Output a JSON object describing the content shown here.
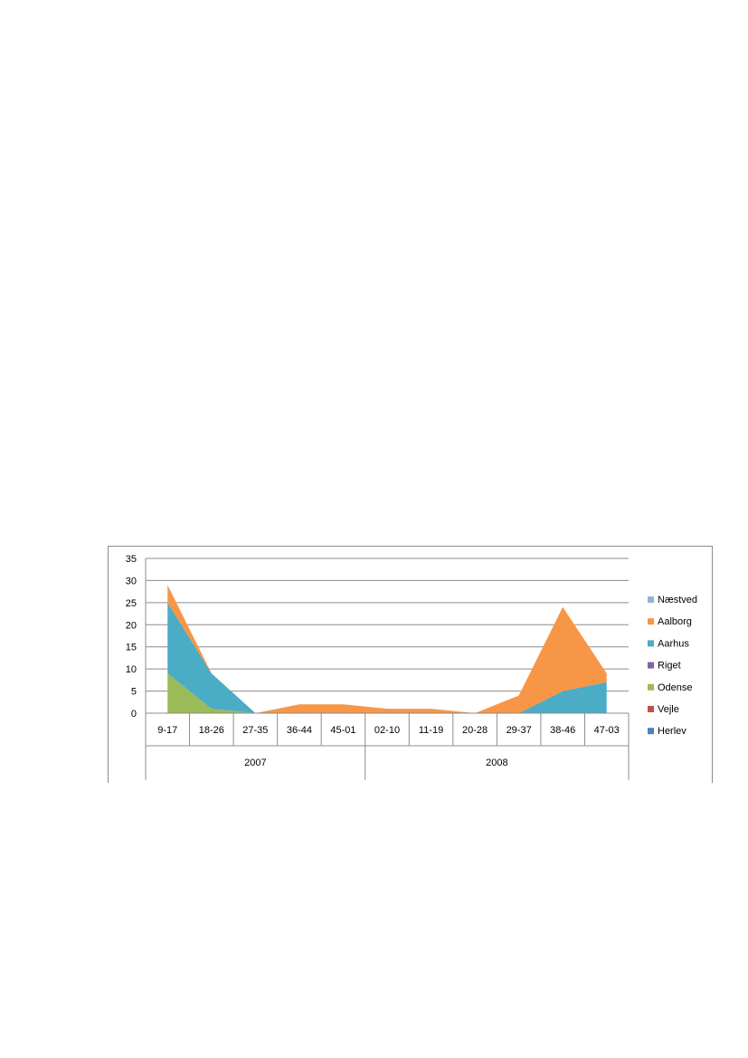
{
  "chart_data": {
    "type": "area",
    "stacked": true,
    "categories": [
      "9-17",
      "18-26",
      "27-35",
      "36-44",
      "45-01",
      "02-10",
      "11-19",
      "20-28",
      "29-37",
      "38-46",
      "47-03"
    ],
    "category_groups": [
      {
        "label": "2007",
        "span": 5
      },
      {
        "label": "2008",
        "span": 6
      }
    ],
    "ylim": [
      0,
      35
    ],
    "yticks": [
      0,
      5,
      10,
      15,
      20,
      25,
      30,
      35
    ],
    "grid": true,
    "legend_position": "right",
    "series": [
      {
        "name": "Herlev",
        "color": "#4f81bd",
        "values": [
          0,
          0,
          0,
          0,
          0,
          0,
          0,
          0,
          0,
          0,
          0
        ]
      },
      {
        "name": "Vejle",
        "color": "#c0504d",
        "values": [
          0,
          0,
          0,
          0,
          0,
          0,
          0,
          0,
          0,
          0,
          0
        ]
      },
      {
        "name": "Odense",
        "color": "#9bbb59",
        "values": [
          9,
          1,
          0,
          0,
          0,
          0,
          0,
          0,
          0,
          0,
          0
        ]
      },
      {
        "name": "Riget",
        "color": "#8064a2",
        "values": [
          0,
          0,
          0,
          0,
          0,
          0,
          0,
          0,
          0,
          0,
          0
        ]
      },
      {
        "name": "Aarhus",
        "color": "#4bacc6",
        "values": [
          16,
          8,
          0,
          0,
          0,
          0,
          0,
          0,
          0,
          5,
          7
        ]
      },
      {
        "name": "Aalborg",
        "color": "#f79646",
        "values": [
          4,
          0,
          0,
          2,
          2,
          1,
          1,
          0,
          4,
          19,
          2
        ]
      },
      {
        "name": "Næstved",
        "color": "#95b3d7",
        "values": [
          0,
          0,
          0,
          0,
          0,
          0,
          0,
          0,
          0,
          0,
          0
        ]
      }
    ],
    "legend_order": [
      "Næstved",
      "Aalborg",
      "Aarhus",
      "Riget",
      "Odense",
      "Vejle",
      "Herlev"
    ]
  }
}
